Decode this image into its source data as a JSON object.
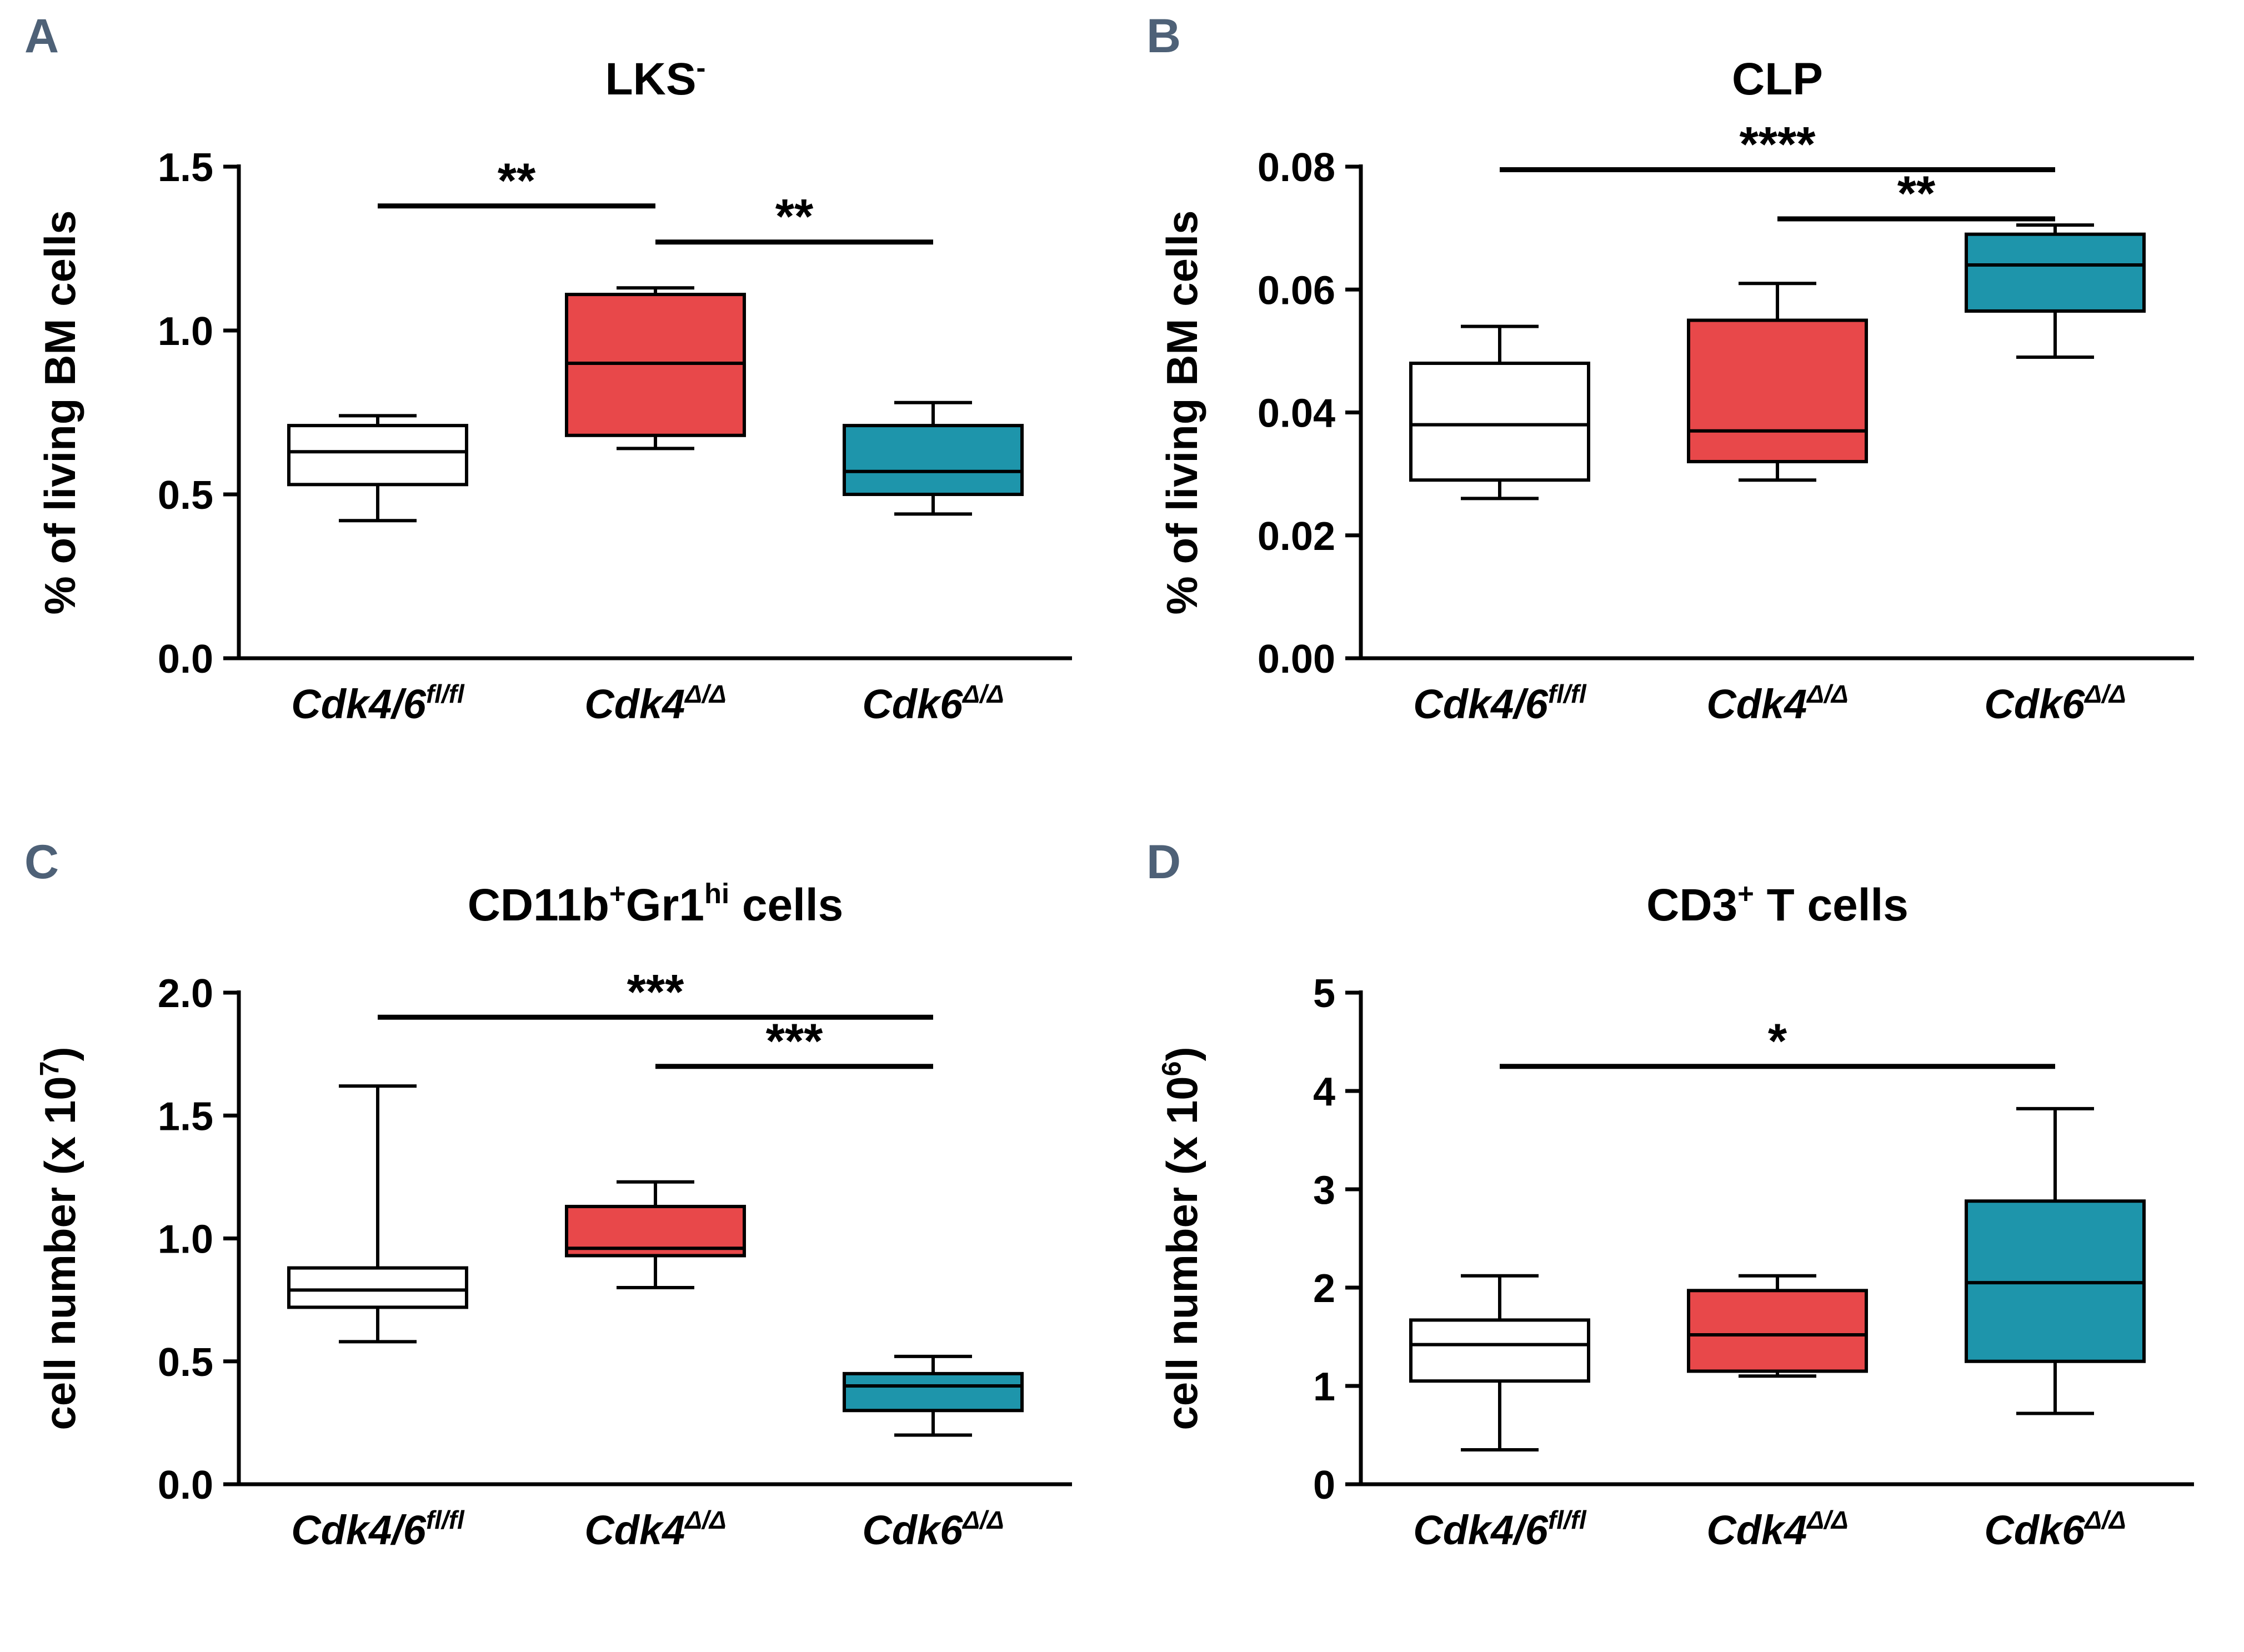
{
  "figure_title": "",
  "chart_data": [
    {
      "type": "box",
      "letter": "A",
      "title": "LKS^-",
      "title_segments": [
        {
          "t": "LKS"
        },
        {
          "t": "-",
          "sup": true
        }
      ],
      "ylabel": "% of living BM cells",
      "ylabel_segments": [
        {
          "t": "% of living BM cells"
        }
      ],
      "ylim": [
        0,
        1.5
      ],
      "yticks": [
        0,
        0.5,
        1.0,
        1.5
      ],
      "ytick_labels": [
        "0.0",
        "0.5",
        "1.0",
        "1.5"
      ],
      "grid": false,
      "legend": "none",
      "categories": [
        "Cdk4/6^fl/fl",
        "Cdk4^Δ/Δ",
        "Cdk6^Δ/Δ"
      ],
      "category_segments": [
        [
          {
            "t": "Cdk4/6"
          },
          {
            "t": "fl/fl",
            "sup": true
          }
        ],
        [
          {
            "t": "Cdk4"
          },
          {
            "t": "Δ/Δ",
            "sup": true
          }
        ],
        [
          {
            "t": "Cdk6"
          },
          {
            "t": "Δ/Δ",
            "sup": true
          }
        ]
      ],
      "series": [
        {
          "name": "Cdk4/6^fl/fl",
          "color": "#ffffff",
          "whisker_low": 0.42,
          "q1": 0.53,
          "median": 0.63,
          "q3": 0.71,
          "whisker_high": 0.74
        },
        {
          "name": "Cdk4^Δ/Δ",
          "color": "#e8484a",
          "whisker_low": 0.64,
          "q1": 0.68,
          "median": 0.9,
          "q3": 1.11,
          "whisker_high": 1.13
        },
        {
          "name": "Cdk6^Δ/Δ",
          "color": "#1e95ab",
          "whisker_low": 0.44,
          "q1": 0.5,
          "median": 0.57,
          "q3": 0.71,
          "whisker_high": 0.78
        }
      ],
      "significance": [
        {
          "from": 0,
          "to": 1,
          "y": 1.38,
          "label": "**"
        },
        {
          "from": 1,
          "to": 2,
          "y": 1.27,
          "label": "**"
        }
      ]
    },
    {
      "type": "box",
      "letter": "B",
      "title": "CLP",
      "title_segments": [
        {
          "t": "CLP"
        }
      ],
      "ylabel": "% of living BM cells",
      "ylabel_segments": [
        {
          "t": "% of living BM cells"
        }
      ],
      "ylim": [
        0,
        0.08
      ],
      "yticks": [
        0,
        0.02,
        0.04,
        0.06,
        0.08
      ],
      "ytick_labels": [
        "0.00",
        "0.02",
        "0.04",
        "0.06",
        "0.08"
      ],
      "grid": false,
      "legend": "none",
      "categories": [
        "Cdk4/6^fl/fl",
        "Cdk4^Δ/Δ",
        "Cdk6^Δ/Δ"
      ],
      "category_segments": [
        [
          {
            "t": "Cdk4/6"
          },
          {
            "t": "fl/fl",
            "sup": true
          }
        ],
        [
          {
            "t": "Cdk4"
          },
          {
            "t": "Δ/Δ",
            "sup": true
          }
        ],
        [
          {
            "t": "Cdk6"
          },
          {
            "t": "Δ/Δ",
            "sup": true
          }
        ]
      ],
      "series": [
        {
          "name": "Cdk4/6^fl/fl",
          "color": "#ffffff",
          "whisker_low": 0.026,
          "q1": 0.029,
          "median": 0.038,
          "q3": 0.048,
          "whisker_high": 0.054
        },
        {
          "name": "Cdk4^Δ/Δ",
          "color": "#e8484a",
          "whisker_low": 0.029,
          "q1": 0.032,
          "median": 0.037,
          "q3": 0.055,
          "whisker_high": 0.061
        },
        {
          "name": "Cdk6^Δ/Δ",
          "color": "#1e95ab",
          "whisker_low": 0.049,
          "q1": 0.0565,
          "median": 0.064,
          "q3": 0.069,
          "whisker_high": 0.0705
        }
      ],
      "significance": [
        {
          "from": 0,
          "to": 2,
          "y": 0.0795,
          "label": "****"
        },
        {
          "from": 1,
          "to": 2,
          "y": 0.0715,
          "label": "**"
        }
      ]
    },
    {
      "type": "box",
      "letter": "C",
      "title": "CD11b^+Gr1^hi cells",
      "title_segments": [
        {
          "t": "CD11b"
        },
        {
          "t": "+",
          "sup": true
        },
        {
          "t": "Gr1"
        },
        {
          "t": "hi",
          "sup": true
        },
        {
          "t": " cells"
        }
      ],
      "ylabel": "cell number (x 10^7)",
      "ylabel_segments": [
        {
          "t": "cell number (x 10"
        },
        {
          "t": "7",
          "sup": true
        },
        {
          "t": ")"
        }
      ],
      "ylim": [
        0,
        2.0
      ],
      "yticks": [
        0,
        0.5,
        1.0,
        1.5,
        2.0
      ],
      "ytick_labels": [
        "0.0",
        "0.5",
        "1.0",
        "1.5",
        "2.0"
      ],
      "grid": false,
      "legend": "none",
      "categories": [
        "Cdk4/6^fl/fl",
        "Cdk4^Δ/Δ",
        "Cdk6^Δ/Δ"
      ],
      "category_segments": [
        [
          {
            "t": "Cdk4/6"
          },
          {
            "t": "fl/fl",
            "sup": true
          }
        ],
        [
          {
            "t": "Cdk4"
          },
          {
            "t": "Δ/Δ",
            "sup": true
          }
        ],
        [
          {
            "t": "Cdk6"
          },
          {
            "t": "Δ/Δ",
            "sup": true
          }
        ]
      ],
      "series": [
        {
          "name": "Cdk4/6^fl/fl",
          "color": "#ffffff",
          "whisker_low": 0.58,
          "q1": 0.72,
          "median": 0.79,
          "q3": 0.88,
          "whisker_high": 1.62
        },
        {
          "name": "Cdk4^Δ/Δ",
          "color": "#e8484a",
          "whisker_low": 0.8,
          "q1": 0.93,
          "median": 0.96,
          "q3": 1.13,
          "whisker_high": 1.23
        },
        {
          "name": "Cdk6^Δ/Δ",
          "color": "#1e95ab",
          "whisker_low": 0.2,
          "q1": 0.3,
          "median": 0.4,
          "q3": 0.45,
          "whisker_high": 0.52
        }
      ],
      "significance": [
        {
          "from": 0,
          "to": 2,
          "y": 1.9,
          "label": "***"
        },
        {
          "from": 1,
          "to": 2,
          "y": 1.7,
          "label": "***"
        }
      ]
    },
    {
      "type": "box",
      "letter": "D",
      "title": "CD3^+ T cells",
      "title_segments": [
        {
          "t": "CD3"
        },
        {
          "t": "+",
          "sup": true
        },
        {
          "t": " T cells"
        }
      ],
      "ylabel": "cell number (x 10^6)",
      "ylabel_segments": [
        {
          "t": "cell number (x 10"
        },
        {
          "t": "6",
          "sup": true
        },
        {
          "t": ")"
        }
      ],
      "ylim": [
        0,
        5
      ],
      "yticks": [
        0,
        1,
        2,
        3,
        4,
        5
      ],
      "ytick_labels": [
        "0",
        "1",
        "2",
        "3",
        "4",
        "5"
      ],
      "grid": false,
      "legend": "none",
      "categories": [
        "Cdk4/6^fl/fl",
        "Cdk4^Δ/Δ",
        "Cdk6^Δ/Δ"
      ],
      "category_segments": [
        [
          {
            "t": "Cdk4/6"
          },
          {
            "t": "fl/fl",
            "sup": true
          }
        ],
        [
          {
            "t": "Cdk4"
          },
          {
            "t": "Δ/Δ",
            "sup": true
          }
        ],
        [
          {
            "t": "Cdk6"
          },
          {
            "t": "Δ/Δ",
            "sup": true
          }
        ]
      ],
      "series": [
        {
          "name": "Cdk4/6^fl/fl",
          "color": "#ffffff",
          "whisker_low": 0.35,
          "q1": 1.05,
          "median": 1.42,
          "q3": 1.67,
          "whisker_high": 2.12
        },
        {
          "name": "Cdk4^Δ/Δ",
          "color": "#e8484a",
          "whisker_low": 1.1,
          "q1": 1.15,
          "median": 1.52,
          "q3": 1.97,
          "whisker_high": 2.12
        },
        {
          "name": "Cdk6^Δ/Δ",
          "color": "#1e95ab",
          "whisker_low": 0.72,
          "q1": 1.25,
          "median": 2.05,
          "q3": 2.88,
          "whisker_high": 3.82
        }
      ],
      "significance": [
        {
          "from": 0,
          "to": 2,
          "y": 4.25,
          "label": "*"
        }
      ]
    }
  ],
  "colors": {
    "control_box": "#ffffff",
    "cdk4_box": "#e8484a",
    "cdk6_box": "#1e95ab",
    "panel_letter": "#4e6177",
    "axis": "#000000"
  }
}
